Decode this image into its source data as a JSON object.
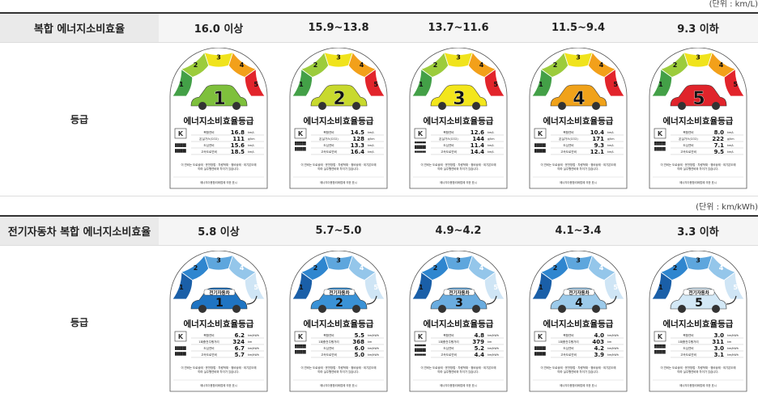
{
  "fuel": {
    "unit": "(단위 : km/L)",
    "header_label": "복합 에너지소비효율",
    "row_label": "등급",
    "ranges": [
      "16.0 이상",
      "15.9~13.8",
      "13.7~11.6",
      "11.5~9.4",
      "9.3 이하"
    ],
    "label_title": "에너지소비효율등급",
    "row_names": [
      "복합연비",
      "온실가스(CO2)",
      "도심연비",
      "고속도로연비"
    ],
    "row_units": [
      "km/L",
      "g/km",
      "km/L",
      "km/L"
    ],
    "footnote1": "이 연비는 도로상태 · 운전방법 · 차량적재 · 정비상태 · 외기온도에",
    "footnote2": "따라 실주행연비와 차이가 있습니다.",
    "bottom_note": "에너지이용합리화법에 의한 표시",
    "grades": [
      {
        "num": "1",
        "values": [
          "16.8",
          "111",
          "15.6",
          "18.5"
        ],
        "color": "#7ec03c"
      },
      {
        "num": "2",
        "values": [
          "14.5",
          "128",
          "13.3",
          "16.4"
        ],
        "color": "#c8d92e"
      },
      {
        "num": "3",
        "values": [
          "12.6",
          "144",
          "11.4",
          "14.4"
        ],
        "color": "#f3e61c"
      },
      {
        "num": "4",
        "values": [
          "10.4",
          "171",
          "9.3",
          "12.1"
        ],
        "color": "#f0a21a"
      },
      {
        "num": "5",
        "values": [
          "8.0",
          "222",
          "7.1",
          "9.5"
        ],
        "color": "#e0242b"
      }
    ],
    "arc_colors": [
      "#43a047",
      "#9ccc3c",
      "#f0e31c",
      "#f2a01a",
      "#e2242b"
    ]
  },
  "ev": {
    "unit": "(단위 : km/kWh)",
    "header_label": "전기자동차 복합 에너지소비효율",
    "row_label": "등급",
    "ranges": [
      "5.8 이상",
      "5.7~5.0",
      "4.9~4.2",
      "4.1~3.4",
      "3.3 이하"
    ],
    "label_title": "에너지소비효율등급",
    "car_tag": "전기자동차",
    "row_names": [
      "복합연비",
      "1회충전주행거리",
      "도심연비",
      "고속도로연비"
    ],
    "row_units": [
      "km/kWh",
      "km",
      "km/kWh",
      "km/kWh"
    ],
    "footnote1": "이 연비는 도로상태 · 운전방법 · 차량적재 · 정비상태 · 외기온도에",
    "footnote2": "따라 실주행연비와 차이가 있습니다.",
    "bottom_note": "에너지이용합리화법에 의한 표시",
    "grades": [
      {
        "num": "1",
        "values": [
          "6.2",
          "324",
          "6.7",
          "5.7"
        ],
        "color": "#1f74c2"
      },
      {
        "num": "2",
        "values": [
          "5.5",
          "368",
          "6.0",
          "5.0"
        ],
        "color": "#3a92d6"
      },
      {
        "num": "3",
        "values": [
          "4.8",
          "379",
          "5.2",
          "4.4"
        ],
        "color": "#6aacdf"
      },
      {
        "num": "4",
        "values": [
          "4.0",
          "403",
          "4.2",
          "3.9"
        ],
        "color": "#9ccaea"
      },
      {
        "num": "5",
        "values": [
          "3.0",
          "311",
          "3.0",
          "3.1"
        ],
        "color": "#d3e8f6"
      }
    ],
    "arc_colors": [
      "#1a5fa8",
      "#2f86cf",
      "#5ea6dd",
      "#94c6ea",
      "#cfe5f5"
    ]
  }
}
